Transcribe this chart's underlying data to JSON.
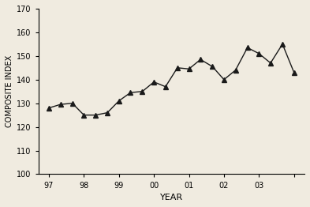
{
  "x_vals": [
    97.0,
    97.33,
    97.67,
    98.0,
    98.33,
    98.67,
    99.0,
    99.33,
    99.67,
    100.0,
    100.33,
    100.67,
    101.0,
    101.33,
    101.67,
    102.0,
    102.33,
    102.67,
    103.0,
    103.33,
    103.67,
    104.0
  ],
  "y_vals": [
    128,
    129.5,
    130,
    125,
    125,
    126,
    131,
    134.5,
    135,
    139,
    137,
    145,
    144.5,
    148.5,
    145.5,
    140,
    144,
    153.5,
    151,
    147,
    155,
    143
  ],
  "ylim": [
    100,
    170
  ],
  "xlim": [
    96.7,
    104.3
  ],
  "yticks": [
    100,
    110,
    120,
    130,
    140,
    150,
    160,
    170
  ],
  "xtick_pos": [
    97,
    98,
    99,
    100,
    101,
    102,
    103,
    104
  ],
  "xtick_labels": [
    "97",
    "98",
    "99",
    "00",
    "01",
    "02",
    "03",
    ""
  ],
  "xlabel": "YEAR",
  "ylabel": "COMPOSITE INDEX",
  "line_color": "#1a1a1a",
  "marker": "^",
  "marker_size": 4,
  "line_width": 1.0,
  "bg_color": "#f0ebe0",
  "figure_bg": "#f0ebe0"
}
